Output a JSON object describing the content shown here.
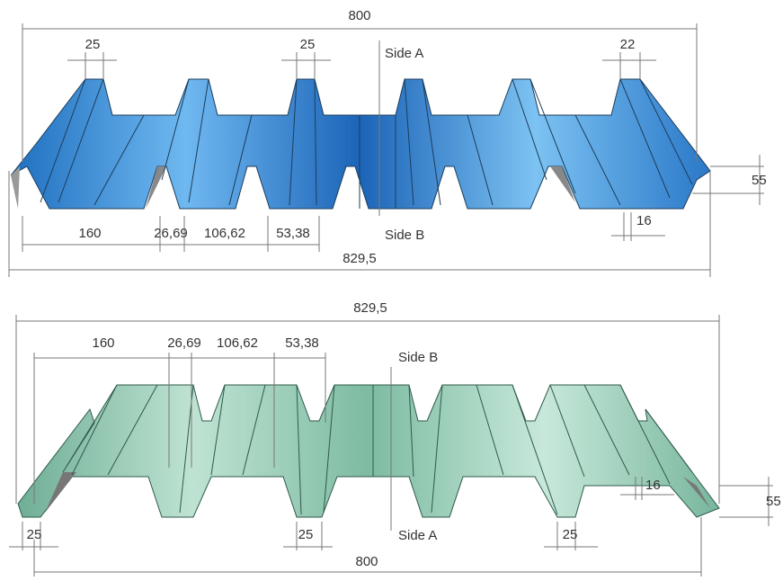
{
  "top_profile": {
    "labels": [
      "800",
      "25",
      "25",
      "22",
      "Side A",
      "55",
      "160",
      "26,69",
      "106,62",
      "53,38",
      "Side B",
      "16",
      "829,5"
    ]
  },
  "bottom_profile": {
    "labels": [
      "829,5",
      "160",
      "26,69",
      "106,62",
      "53,38",
      "Side B",
      "55",
      "16",
      "25",
      "25",
      "25",
      "Side A",
      "800"
    ]
  }
}
